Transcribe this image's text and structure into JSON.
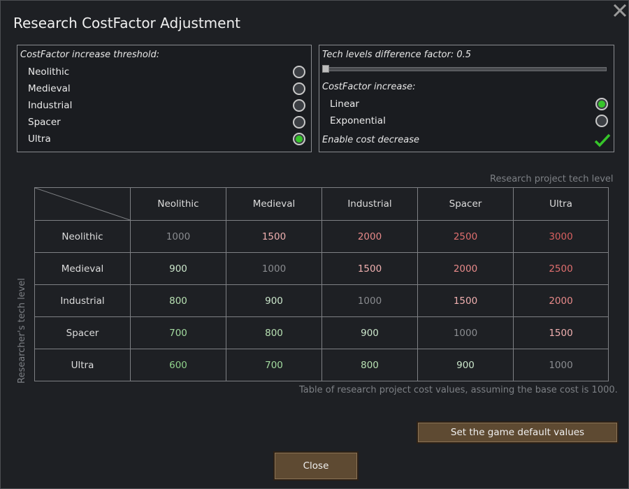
{
  "window": {
    "title": "Research CostFactor Adjustment"
  },
  "threshold": {
    "heading": "CostFactor increase threshold:",
    "options": [
      {
        "label": "Neolithic",
        "selected": false
      },
      {
        "label": "Medieval",
        "selected": false
      },
      {
        "label": "Industrial",
        "selected": false
      },
      {
        "label": "Spacer",
        "selected": false
      },
      {
        "label": "Ultra",
        "selected": true
      }
    ]
  },
  "settings": {
    "difference_label": "Tech levels difference factor: 0.5",
    "difference_value": 0.5,
    "increase_heading": "CostFactor increase:",
    "increase_options": [
      {
        "label": "Linear",
        "selected": true
      },
      {
        "label": "Exponential",
        "selected": false
      }
    ],
    "enable_decrease_label": "Enable cost decrease",
    "enable_decrease": true
  },
  "table": {
    "column_axis_label": "Research project tech level",
    "row_axis_label": "Researcher's tech level",
    "columns": [
      "Neolithic",
      "Medieval",
      "Industrial",
      "Spacer",
      "Ultra"
    ],
    "rows": [
      {
        "label": "Neolithic",
        "values": [
          "1000",
          "1500",
          "2000",
          "2500",
          "3000"
        ]
      },
      {
        "label": "Medieval",
        "values": [
          "900",
          "1000",
          "1500",
          "2000",
          "2500"
        ]
      },
      {
        "label": "Industrial",
        "values": [
          "800",
          "900",
          "1000",
          "1500",
          "2000"
        ]
      },
      {
        "label": "Spacer",
        "values": [
          "700",
          "800",
          "900",
          "1000",
          "1500"
        ]
      },
      {
        "label": "Ultra",
        "values": [
          "600",
          "700",
          "800",
          "900",
          "1000"
        ]
      }
    ],
    "caption": "Table of research project cost values, assuming the base cost is 1000."
  },
  "buttons": {
    "defaults_label": "Set the game default values",
    "close_label": "Close"
  },
  "colors": {
    "accent_green": "#36c52a",
    "button_brown": "#5e4a32",
    "background": "#1e2024"
  }
}
